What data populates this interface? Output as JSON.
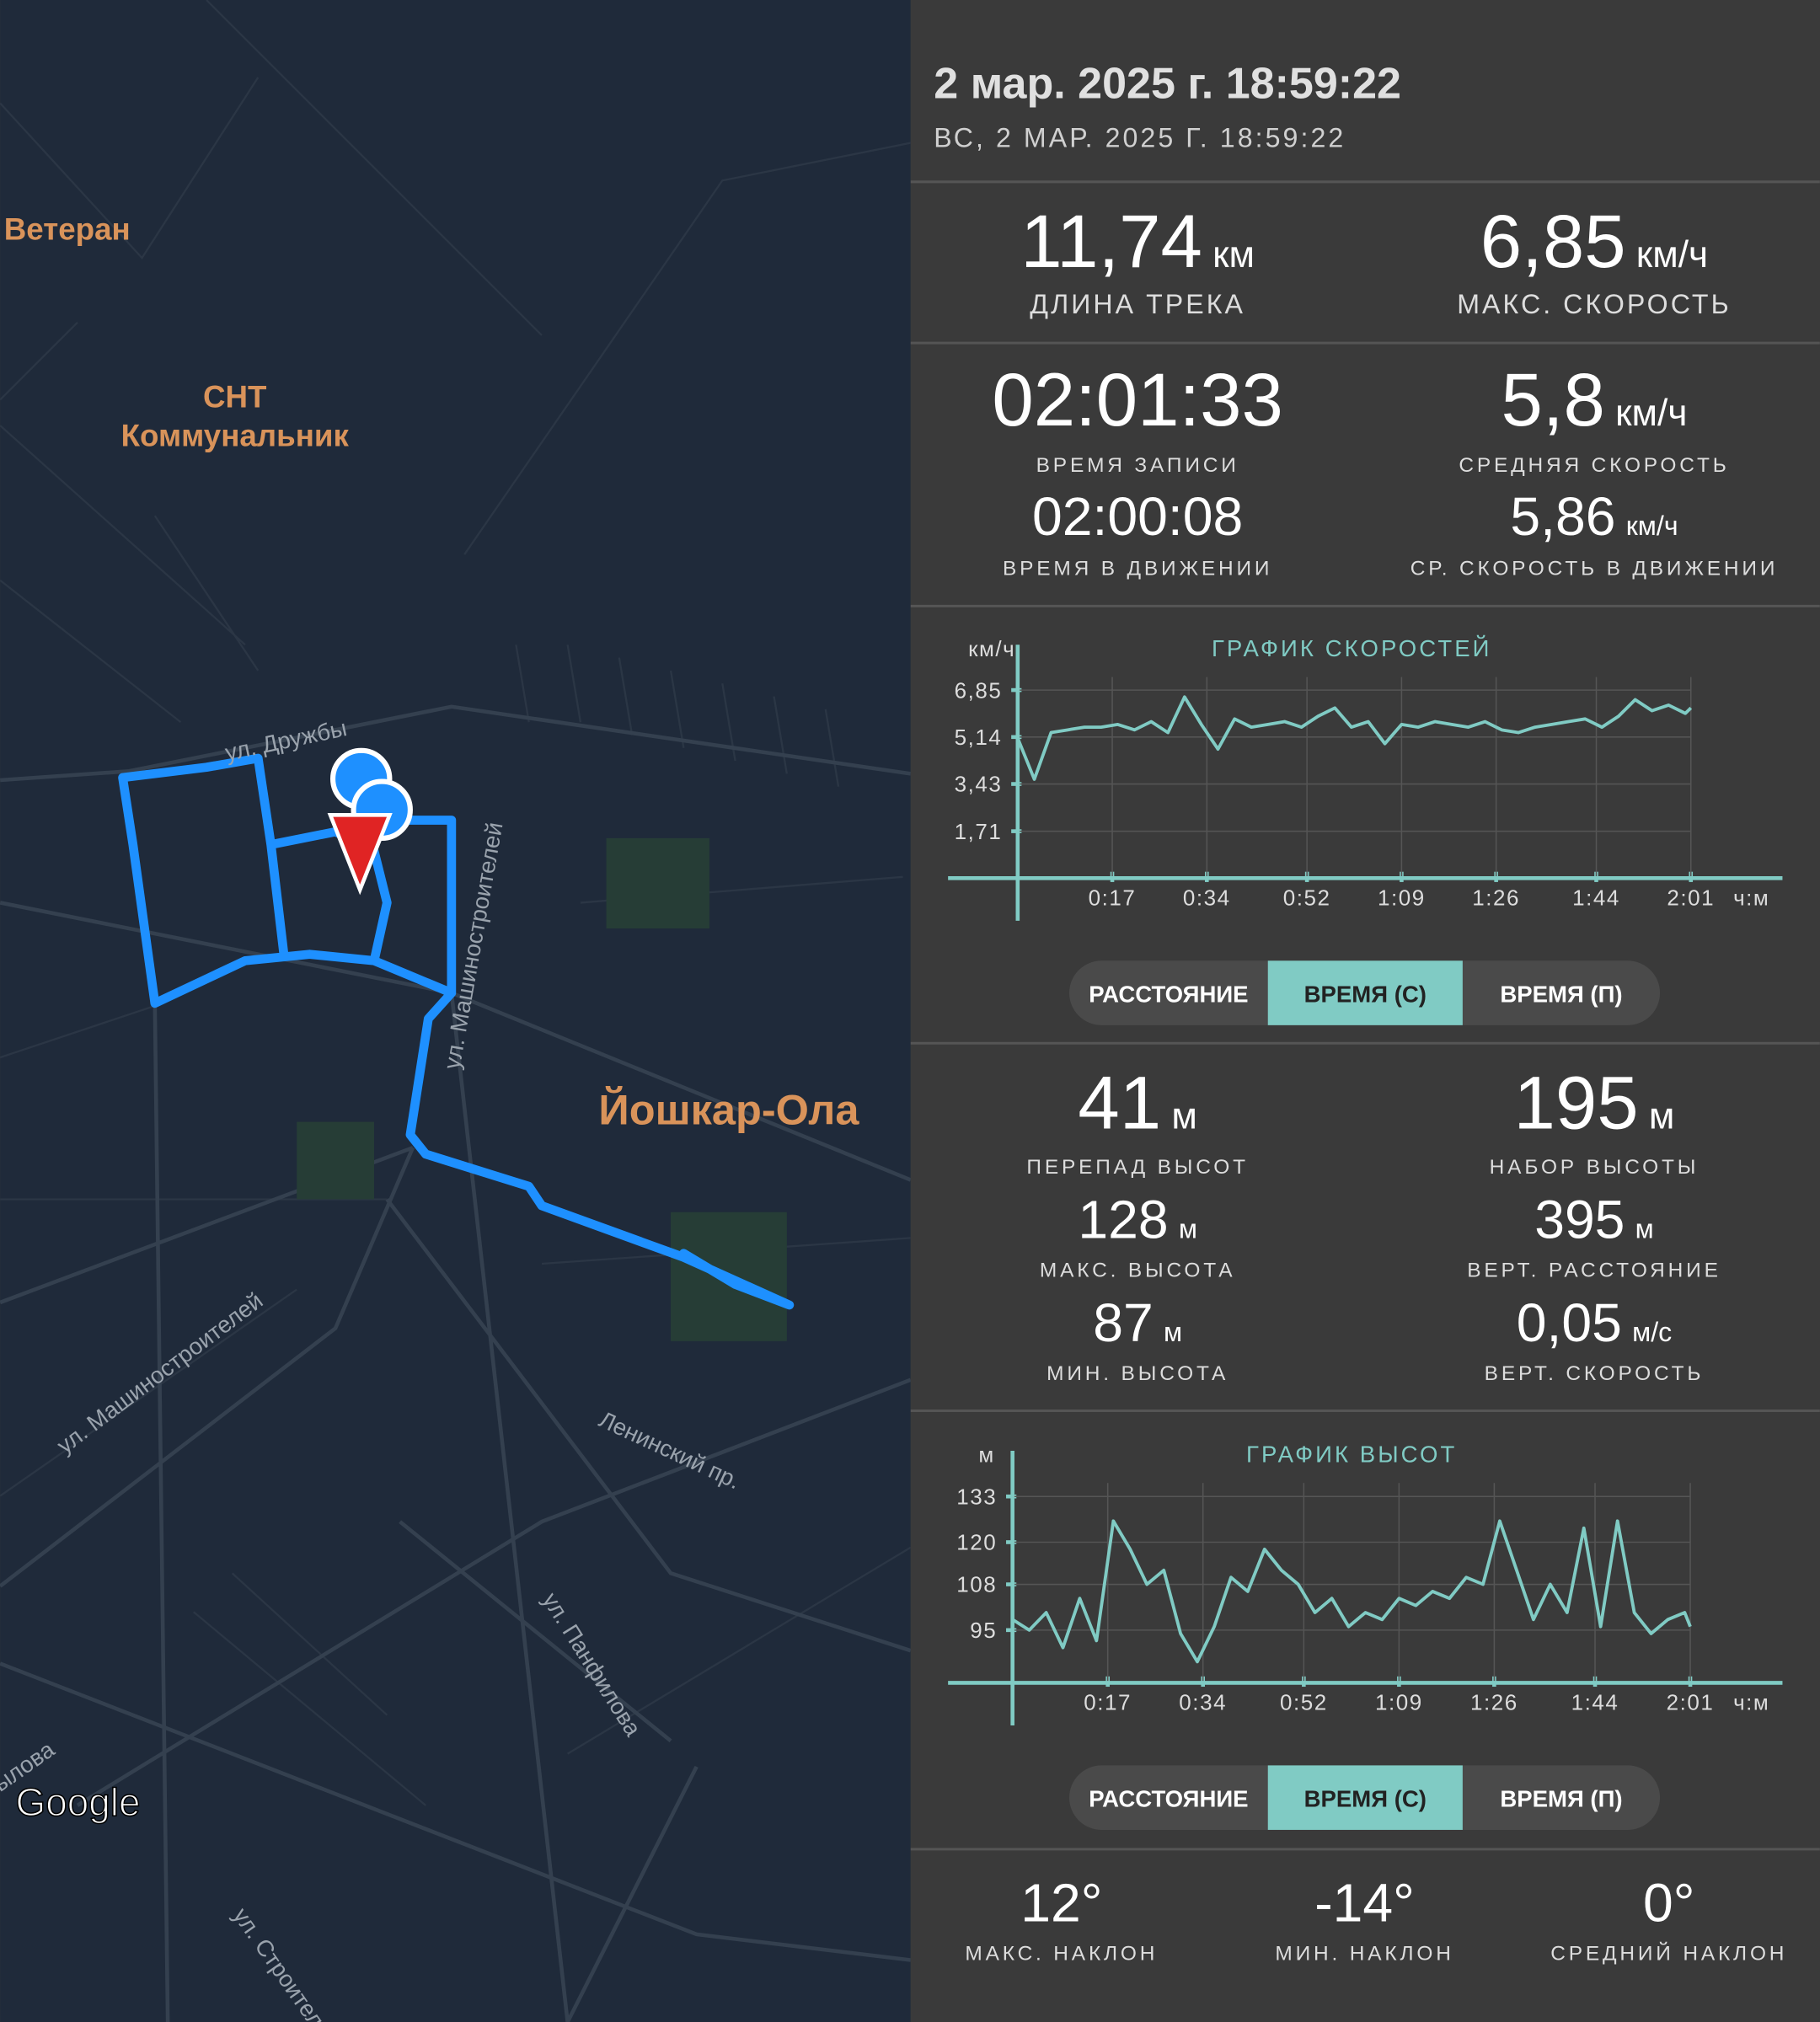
{
  "header": {
    "title": "2 мар. 2025 г. 18:59:22",
    "subtitle": "ВС, 2 МАР. 2025 Г. 18:59:22"
  },
  "map": {
    "place_labels": [
      "Ветеран",
      "СНТ",
      "Коммунальник",
      "Йошкар-Ола"
    ],
    "street_labels": [
      "ул. Дружбы",
      "ул. Машиностроителей",
      "ул. Машиностроителей",
      "Ленинский пр.",
      "ул. Панфилова",
      "ул. Строителе",
      "ылова"
    ],
    "logo": "Google"
  },
  "summary": [
    {
      "value": "11,74",
      "unit": "км",
      "label": "ДЛИНА ТРЕКА"
    },
    {
      "value": "6,85",
      "unit": "км/ч",
      "label": "МАКС. СКОРОСТЬ"
    }
  ],
  "times": [
    {
      "value": "02:01:33",
      "label": "ВРЕМЯ ЗАПИСИ"
    },
    {
      "value": "5,8",
      "unit": "км/ч",
      "label": "СРЕДНЯЯ СКОРОСТЬ"
    },
    {
      "value": "02:00:08",
      "label": "ВРЕМЯ В ДВИЖЕНИИ"
    },
    {
      "value": "5,86",
      "unit": "км/ч",
      "label": "СР. СКОРОСТЬ В ДВИЖЕНИИ"
    }
  ],
  "speed_chart": {
    "type": "line",
    "title": "ГРАФИК СКОРОСТЕЙ",
    "y_label": "км/ч",
    "x_label": "ч:м",
    "color": "#80cbc4",
    "grid": true,
    "xlim": [
      0,
      137
    ],
    "ylim": [
      0,
      8.5
    ],
    "xticks": [
      {
        "value": 17,
        "label": "0:17"
      },
      {
        "value": 34,
        "label": "0:34"
      },
      {
        "value": 52,
        "label": "0:52"
      },
      {
        "value": 69,
        "label": "1:09"
      },
      {
        "value": 86,
        "label": "1:26"
      },
      {
        "value": 104,
        "label": "1:44"
      },
      {
        "value": 121,
        "label": "2:01"
      }
    ],
    "yticks": [
      {
        "value": 1.71,
        "label": "1,71"
      },
      {
        "value": 3.43,
        "label": "3,43"
      },
      {
        "value": 5.14,
        "label": "5,14"
      },
      {
        "value": 6.85,
        "label": "6,85"
      }
    ],
    "x": [
      0,
      3,
      6,
      9,
      12,
      15,
      18,
      21,
      24,
      27,
      30,
      33,
      36,
      39,
      42,
      45,
      48,
      51,
      54,
      57,
      60,
      63,
      66,
      69,
      72,
      75,
      78,
      81,
      84,
      87,
      90,
      93,
      96,
      99,
      102,
      105,
      108,
      111,
      114,
      117,
      120,
      121
    ],
    "values": [
      5.1,
      3.6,
      5.3,
      5.4,
      5.5,
      5.5,
      5.6,
      5.4,
      5.7,
      5.3,
      6.6,
      5.6,
      4.7,
      5.8,
      5.5,
      5.6,
      5.7,
      5.5,
      5.9,
      6.2,
      5.5,
      5.7,
      4.9,
      5.6,
      5.5,
      5.7,
      5.6,
      5.5,
      5.7,
      5.4,
      5.3,
      5.5,
      5.6,
      5.7,
      5.8,
      5.5,
      5.9,
      6.5,
      6.1,
      6.3,
      6.0,
      6.2
    ],
    "toggle": [
      "РАССТОЯНИЕ",
      "ВРЕМЯ (С)",
      "ВРЕМЯ (П)"
    ],
    "selected": 1
  },
  "elevation": [
    {
      "value": "41",
      "unit": "м",
      "label": "ПЕРЕПАД ВЫСОТ"
    },
    {
      "value": "195",
      "unit": "м",
      "label": "НАБОР ВЫСОТЫ"
    },
    {
      "value": "128",
      "unit": "м",
      "label": "МАКС. ВЫСОТА"
    },
    {
      "value": "395",
      "unit": "м",
      "label": "ВЕРТ. РАССТОЯНИЕ"
    },
    {
      "value": "87",
      "unit": "м",
      "label": "МИН. ВЫСОТА"
    },
    {
      "value": "0,05",
      "unit": "м/с",
      "label": "ВЕРТ. СКОРОСТЬ"
    }
  ],
  "altitude_chart": {
    "type": "line",
    "title": "ГРАФИК ВЫСОТ",
    "y_label": "м",
    "x_label": "ч:м",
    "color": "#80cbc4",
    "grid": true,
    "xlim": [
      0,
      137
    ],
    "ylim": [
      80,
      146
    ],
    "xticks": [
      {
        "value": 17,
        "label": "0:17"
      },
      {
        "value": 34,
        "label": "0:34"
      },
      {
        "value": 52,
        "label": "0:52"
      },
      {
        "value": 69,
        "label": "1:09"
      },
      {
        "value": 86,
        "label": "1:26"
      },
      {
        "value": 104,
        "label": "1:44"
      },
      {
        "value": 121,
        "label": "2:01"
      }
    ],
    "yticks": [
      95,
      108,
      120,
      133
    ],
    "x": [
      0,
      3,
      6,
      9,
      12,
      15,
      18,
      21,
      24,
      27,
      30,
      33,
      36,
      39,
      42,
      45,
      48,
      51,
      54,
      57,
      60,
      63,
      66,
      69,
      72,
      75,
      78,
      81,
      84,
      87,
      90,
      93,
      96,
      99,
      102,
      105,
      108,
      111,
      114,
      117,
      120,
      121
    ],
    "values": [
      98,
      95,
      100,
      90,
      104,
      92,
      126,
      118,
      108,
      112,
      94,
      86,
      96,
      110,
      106,
      118,
      112,
      108,
      100,
      104,
      96,
      100,
      98,
      104,
      102,
      106,
      104,
      110,
      108,
      126,
      112,
      98,
      108,
      100,
      124,
      96,
      126,
      100,
      94,
      98,
      100,
      96
    ],
    "toggle": [
      "РАССТОЯНИЕ",
      "ВРЕМЯ (С)",
      "ВРЕМЯ (П)"
    ],
    "selected": 1
  },
  "slopes": [
    {
      "value": "12°",
      "label": "МАКС. НАКЛОН"
    },
    {
      "value": "-14°",
      "label": "МИН. НАКЛОН"
    },
    {
      "value": "0°",
      "label": "СРЕДНИЙ НАКЛОН"
    }
  ]
}
